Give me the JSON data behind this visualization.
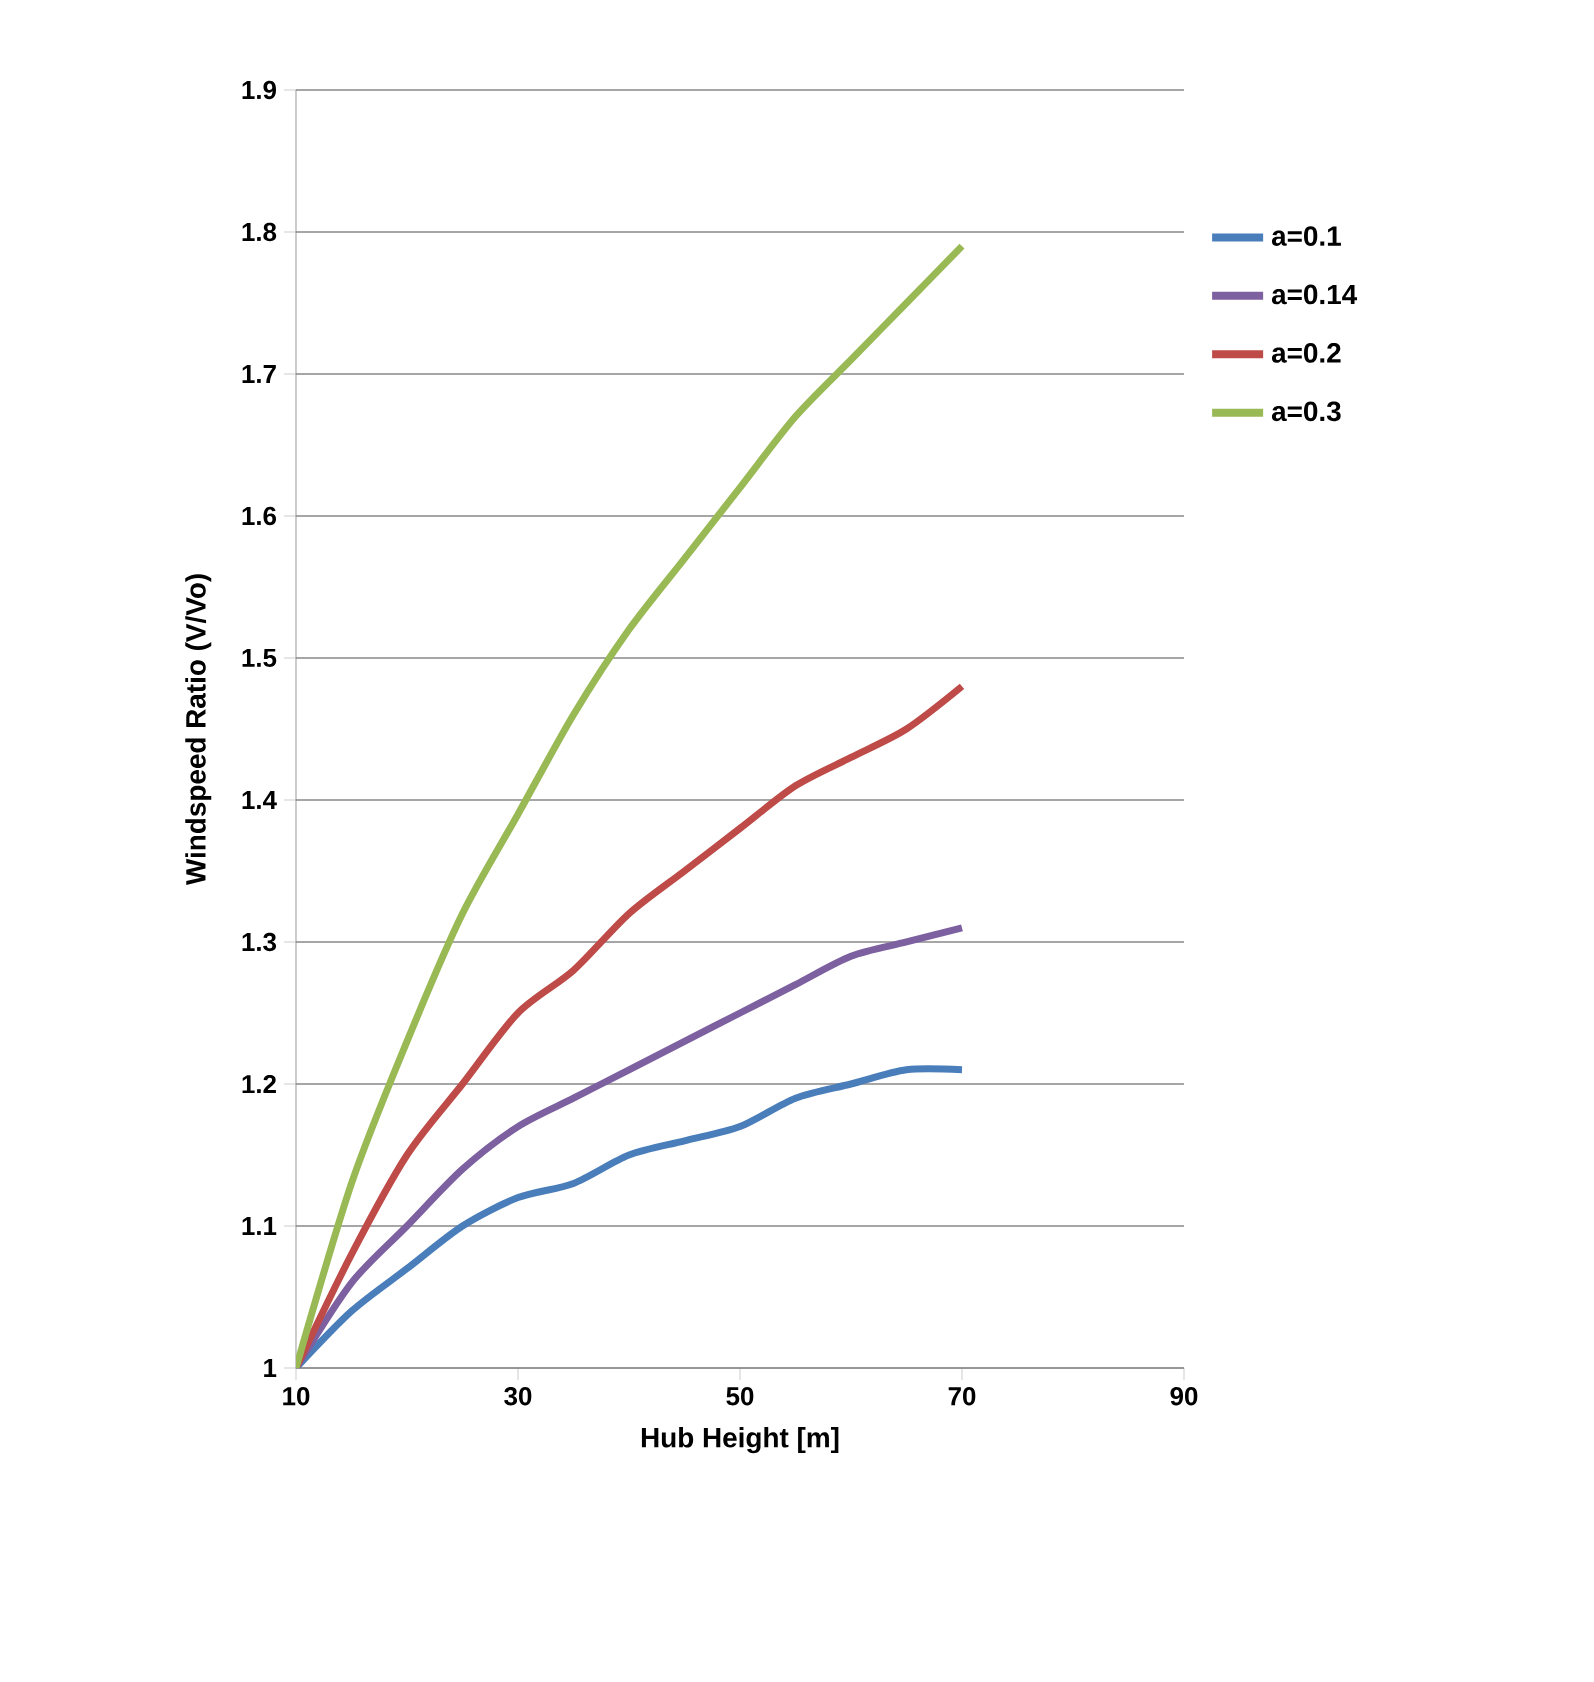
{
  "chart_data": {
    "type": "line",
    "xlabel": "Hub Height [m]",
    "ylabel": "Windspeed Ratio (V/Vo)",
    "x": [
      10,
      15,
      20,
      25,
      30,
      35,
      40,
      45,
      50,
      55,
      60,
      65,
      70
    ],
    "series": [
      {
        "name": "a=0.1",
        "color": "#4a7ebb",
        "values": [
          1,
          1.04,
          1.07,
          1.1,
          1.12,
          1.13,
          1.15,
          1.16,
          1.17,
          1.19,
          1.2,
          1.21,
          1.21
        ]
      },
      {
        "name": "a=0.14",
        "color": "#7d60a0",
        "values": [
          1,
          1.06,
          1.1,
          1.14,
          1.17,
          1.19,
          1.21,
          1.23,
          1.25,
          1.27,
          1.29,
          1.3,
          1.31
        ]
      },
      {
        "name": "a=0.2",
        "color": "#be4b48",
        "values": [
          1,
          1.08,
          1.15,
          1.2,
          1.25,
          1.28,
          1.32,
          1.35,
          1.38,
          1.41,
          1.43,
          1.45,
          1.48
        ]
      },
      {
        "name": "a=0.3",
        "color": "#98b954",
        "values": [
          1,
          1.13,
          1.23,
          1.32,
          1.39,
          1.46,
          1.52,
          1.57,
          1.62,
          1.67,
          1.71,
          1.75,
          1.79
        ]
      }
    ],
    "xlim": [
      10,
      90
    ],
    "xticks": [
      10,
      30,
      50,
      70,
      90
    ],
    "ylim": [
      1,
      1.9
    ],
    "yticks": [
      1,
      1.1,
      1.2,
      1.3,
      1.4,
      1.5,
      1.6,
      1.7,
      1.8,
      1.9
    ],
    "grid": "y",
    "legend": "right",
    "marker": "none",
    "line_style": "solid"
  }
}
